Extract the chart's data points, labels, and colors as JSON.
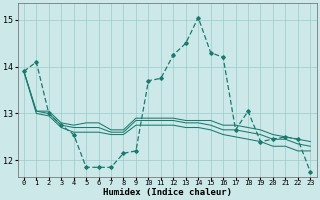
{
  "xlabel": "Humidex (Indice chaleur)",
  "bg_color": "#cce8e8",
  "grid_color": "#99cccc",
  "line_color": "#1a7a6e",
  "xlim": [
    -0.5,
    23.5
  ],
  "ylim": [
    11.65,
    15.35
  ],
  "yticks": [
    12,
    13,
    14,
    15
  ],
  "xticks": [
    0,
    1,
    2,
    3,
    4,
    5,
    6,
    7,
    8,
    9,
    10,
    11,
    12,
    13,
    14,
    15,
    16,
    17,
    18,
    19,
    20,
    21,
    22,
    23
  ],
  "series": [
    [
      13.9,
      14.1,
      13.0,
      12.75,
      12.55,
      11.85,
      11.85,
      11.85,
      12.15,
      12.2,
      13.7,
      13.75,
      14.25,
      14.5,
      15.05,
      14.3,
      14.2,
      12.65,
      13.05,
      12.4,
      12.45,
      12.5,
      12.45,
      11.75
    ],
    [
      13.9,
      13.05,
      13.05,
      12.8,
      12.75,
      12.8,
      12.8,
      12.65,
      12.65,
      12.9,
      12.9,
      12.9,
      12.9,
      12.85,
      12.85,
      12.85,
      12.75,
      12.75,
      12.7,
      12.65,
      12.55,
      12.5,
      12.45,
      12.4
    ],
    [
      13.9,
      13.05,
      13.0,
      12.75,
      12.7,
      12.7,
      12.7,
      12.6,
      12.6,
      12.85,
      12.85,
      12.85,
      12.85,
      12.8,
      12.8,
      12.75,
      12.65,
      12.65,
      12.6,
      12.55,
      12.45,
      12.45,
      12.35,
      12.3
    ],
    [
      13.9,
      13.0,
      12.95,
      12.7,
      12.6,
      12.6,
      12.6,
      12.55,
      12.55,
      12.75,
      12.75,
      12.75,
      12.75,
      12.7,
      12.7,
      12.65,
      12.55,
      12.5,
      12.45,
      12.4,
      12.3,
      12.3,
      12.2,
      12.2
    ]
  ]
}
